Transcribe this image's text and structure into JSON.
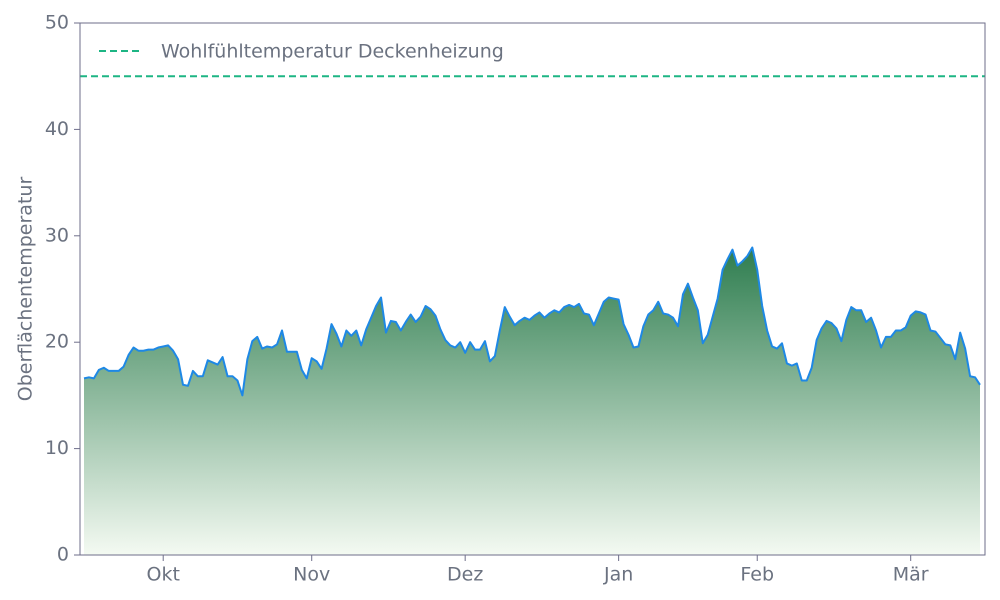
{
  "chart_data": {
    "type": "area",
    "ylabel": "Oberflächentemperatur",
    "ylim": [
      0,
      50
    ],
    "yticks": [
      0,
      10,
      20,
      30,
      40,
      50
    ],
    "color": "#1e88e5",
    "fill_gradient": [
      "#2e7d4f",
      "#f4faf2"
    ],
    "legend": "upper left",
    "reference_line": {
      "value": 45,
      "label": "Wohlfühltemperatur Deckenheizung",
      "color": "#1db584"
    },
    "categories": [
      null,
      null,
      null,
      null,
      null,
      null,
      null,
      null,
      null,
      null,
      null,
      null,
      null,
      null,
      null,
      null,
      "Okt",
      null,
      null,
      null,
      null,
      null,
      null,
      null,
      null,
      null,
      null,
      null,
      null,
      null,
      null,
      null,
      null,
      null,
      null,
      null,
      null,
      null,
      null,
      null,
      null,
      null,
      null,
      null,
      null,
      null,
      "Nov",
      null,
      null,
      null,
      null,
      null,
      null,
      null,
      null,
      null,
      null,
      null,
      null,
      null,
      null,
      null,
      null,
      null,
      null,
      null,
      null,
      null,
      null,
      null,
      null,
      null,
      null,
      null,
      null,
      null,
      null,
      "Dez",
      null,
      null,
      null,
      null,
      null,
      null,
      null,
      null,
      null,
      null,
      null,
      null,
      null,
      null,
      null,
      null,
      null,
      null,
      null,
      null,
      null,
      null,
      null,
      null,
      null,
      null,
      null,
      null,
      null,
      null,
      "Jan",
      null,
      null,
      null,
      null,
      null,
      null,
      null,
      null,
      null,
      null,
      null,
      null,
      null,
      null,
      null,
      null,
      null,
      null,
      null,
      null,
      null,
      null,
      null,
      null,
      null,
      null,
      null,
      "Feb",
      null,
      null,
      null,
      null,
      null,
      null,
      null,
      null,
      null,
      null,
      null,
      null,
      null,
      null,
      null,
      null,
      null,
      null,
      null,
      null,
      null,
      null,
      null,
      null,
      null,
      null,
      null,
      null,
      null,
      null,
      "Mär",
      null,
      null,
      null,
      null,
      null,
      null,
      null,
      null,
      null,
      null,
      null,
      null,
      null,
      null
    ],
    "values": [
      16.6,
      16.7,
      16.6,
      17.4,
      17.6,
      17.3,
      17.3,
      17.3,
      17.7,
      18.8,
      19.5,
      19.2,
      19.2,
      19.3,
      19.3,
      19.5,
      19.6,
      19.7,
      19.2,
      18.4,
      16.0,
      15.9,
      17.3,
      16.8,
      16.8,
      18.3,
      18.1,
      17.9,
      18.6,
      16.8,
      16.8,
      16.4,
      15.0,
      18.4,
      20.1,
      20.5,
      19.4,
      19.6,
      19.5,
      19.8,
      21.1,
      19.1,
      19.1,
      19.1,
      17.4,
      16.6,
      18.5,
      18.2,
      17.5,
      19.4,
      21.7,
      20.8,
      19.6,
      21.1,
      20.6,
      21.1,
      19.7,
      21.2,
      22.3,
      23.4,
      24.2,
      20.9,
      22.0,
      21.9,
      21.1,
      21.9,
      22.6,
      21.9,
      22.4,
      23.4,
      23.1,
      22.5,
      21.2,
      20.2,
      19.7,
      19.5,
      20.0,
      19.0,
      20.0,
      19.3,
      19.3,
      20.1,
      18.2,
      18.7,
      21.1,
      23.3,
      22.4,
      21.6,
      22.0,
      22.3,
      22.1,
      22.5,
      22.8,
      22.3,
      22.7,
      23.0,
      22.8,
      23.3,
      23.5,
      23.3,
      23.6,
      22.7,
      22.6,
      21.6,
      22.7,
      23.8,
      24.2,
      24.1,
      24.0,
      21.7,
      20.7,
      19.5,
      19.6,
      21.5,
      22.6,
      23.0,
      23.8,
      22.7,
      22.6,
      22.3,
      21.5,
      24.5,
      25.5,
      24.2,
      23.0,
      19.9,
      20.7,
      22.4,
      24.1,
      26.8,
      27.8,
      28.7,
      27.2,
      27.6,
      28.1,
      28.9,
      26.8,
      23.4,
      21.1,
      19.6,
      19.4,
      19.9,
      18.0,
      17.8,
      18.0,
      16.4,
      16.4,
      17.6,
      20.2,
      21.3,
      22.0,
      21.8,
      21.3,
      20.1,
      22.1,
      23.3,
      23.0,
      23.0,
      21.9,
      22.3,
      21.1,
      19.5,
      20.5,
      20.5,
      21.1,
      21.1,
      21.4,
      22.5,
      22.9,
      22.8,
      22.6,
      21.1,
      21.0,
      20.4,
      19.8,
      19.7,
      18.4,
      20.9,
      19.4,
      16.8,
      16.7,
      16.0
    ]
  }
}
